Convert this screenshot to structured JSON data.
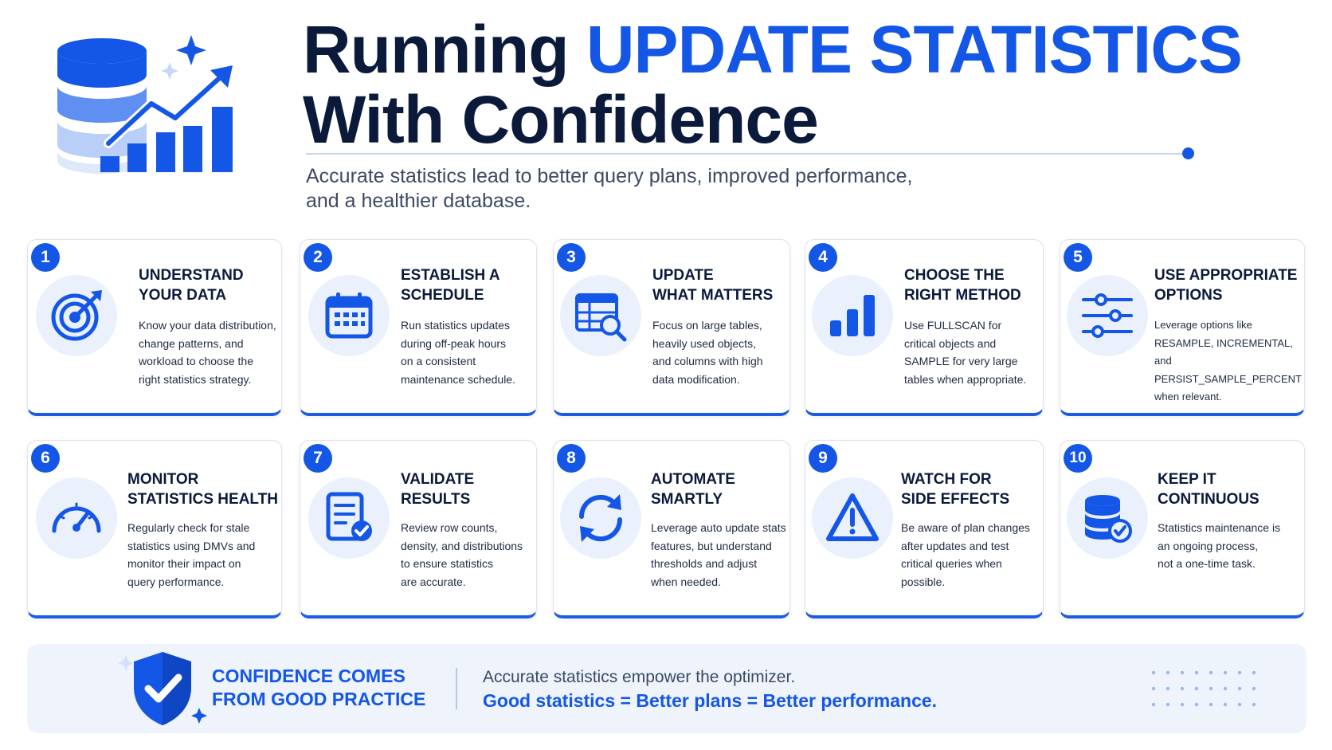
{
  "colors": {
    "accent": "#1456e6",
    "dark": "#0b1a3b",
    "body": "#3c4a63",
    "icon_bg": "#eaf1fc",
    "card_border": "#1d5be3"
  },
  "header": {
    "title_part1": "Running ",
    "title_accent": "UPDATE STATISTICS",
    "title_part2": "With Confidence",
    "subtitle_line1": "Accurate statistics lead to better query plans, improved performance,",
    "subtitle_line2": "and a healthier database.",
    "icon": "database-growth-chart-icon"
  },
  "steps": [
    {
      "number": "1",
      "title_line1": "UNDERSTAND",
      "title_line2": "YOUR DATA",
      "desc": [
        "Know your data distribution,",
        "change patterns, and",
        "workload to choose the",
        "right statistics strategy."
      ],
      "icon": "target-icon"
    },
    {
      "number": "2",
      "title_line1": "ESTABLISH A",
      "title_line2": "SCHEDULE",
      "desc": [
        "Run statistics updates",
        "during off-peak hours",
        "on a consistent",
        "maintenance schedule."
      ],
      "icon": "calendar-icon"
    },
    {
      "number": "3",
      "title_line1": "UPDATE",
      "title_line2": "WHAT MATTERS",
      "desc": [
        "Focus on large tables,",
        "heavily used objects,",
        "and columns with high",
        "data modification."
      ],
      "icon": "table-search-icon"
    },
    {
      "number": "4",
      "title_line1": "CHOOSE THE",
      "title_line2": "RIGHT METHOD",
      "desc": [
        "Use FULLSCAN for",
        "critical objects and",
        "SAMPLE for very large",
        "tables when appropriate."
      ],
      "icon": "bar-chart-icon"
    },
    {
      "number": "5",
      "title_line1": "USE APPROPRIATE",
      "title_line2": "OPTIONS",
      "desc": [
        "Leverage options like",
        "RESAMPLE, INCREMENTAL,",
        "and PERSIST_SAMPLE_PERCENT",
        "when relevant."
      ],
      "icon": "sliders-icon"
    },
    {
      "number": "6",
      "title_line1": "MONITOR",
      "title_line2": "STATISTICS HEALTH",
      "desc": [
        "Regularly check for stale",
        "statistics using DMVs and",
        "monitor their impact on",
        "query performance."
      ],
      "icon": "gauge-icon"
    },
    {
      "number": "7",
      "title_line1": "VALIDATE",
      "title_line2": "RESULTS",
      "desc": [
        "Review row counts,",
        "density, and distributions",
        "to ensure statistics",
        "are accurate."
      ],
      "icon": "document-check-icon"
    },
    {
      "number": "8",
      "title_line1": "AUTOMATE",
      "title_line2": "SMARTLY",
      "desc": [
        "Leverage auto update stats",
        "features, but understand",
        "thresholds and adjust",
        "when needed."
      ],
      "icon": "refresh-icon"
    },
    {
      "number": "9",
      "title_line1": "WATCH FOR",
      "title_line2": "SIDE EFFECTS",
      "desc": [
        "Be aware of plan changes",
        "after updates and test",
        "critical queries when",
        "possible."
      ],
      "icon": "warning-icon"
    },
    {
      "number": "10",
      "title_line1": "KEEP IT",
      "title_line2": "CONTINUOUS",
      "desc": [
        "Statistics maintenance is",
        "an ongoing process,",
        "not a one-time task."
      ],
      "icon": "database-check-icon"
    }
  ],
  "banner": {
    "title_line1": "CONFIDENCE COMES",
    "title_line2": "FROM GOOD PRACTICE",
    "line1": "Accurate statistics empower the optimizer.",
    "line2": "Good statistics = Better plans = Better performance.",
    "icon": "shield-check-icon"
  }
}
